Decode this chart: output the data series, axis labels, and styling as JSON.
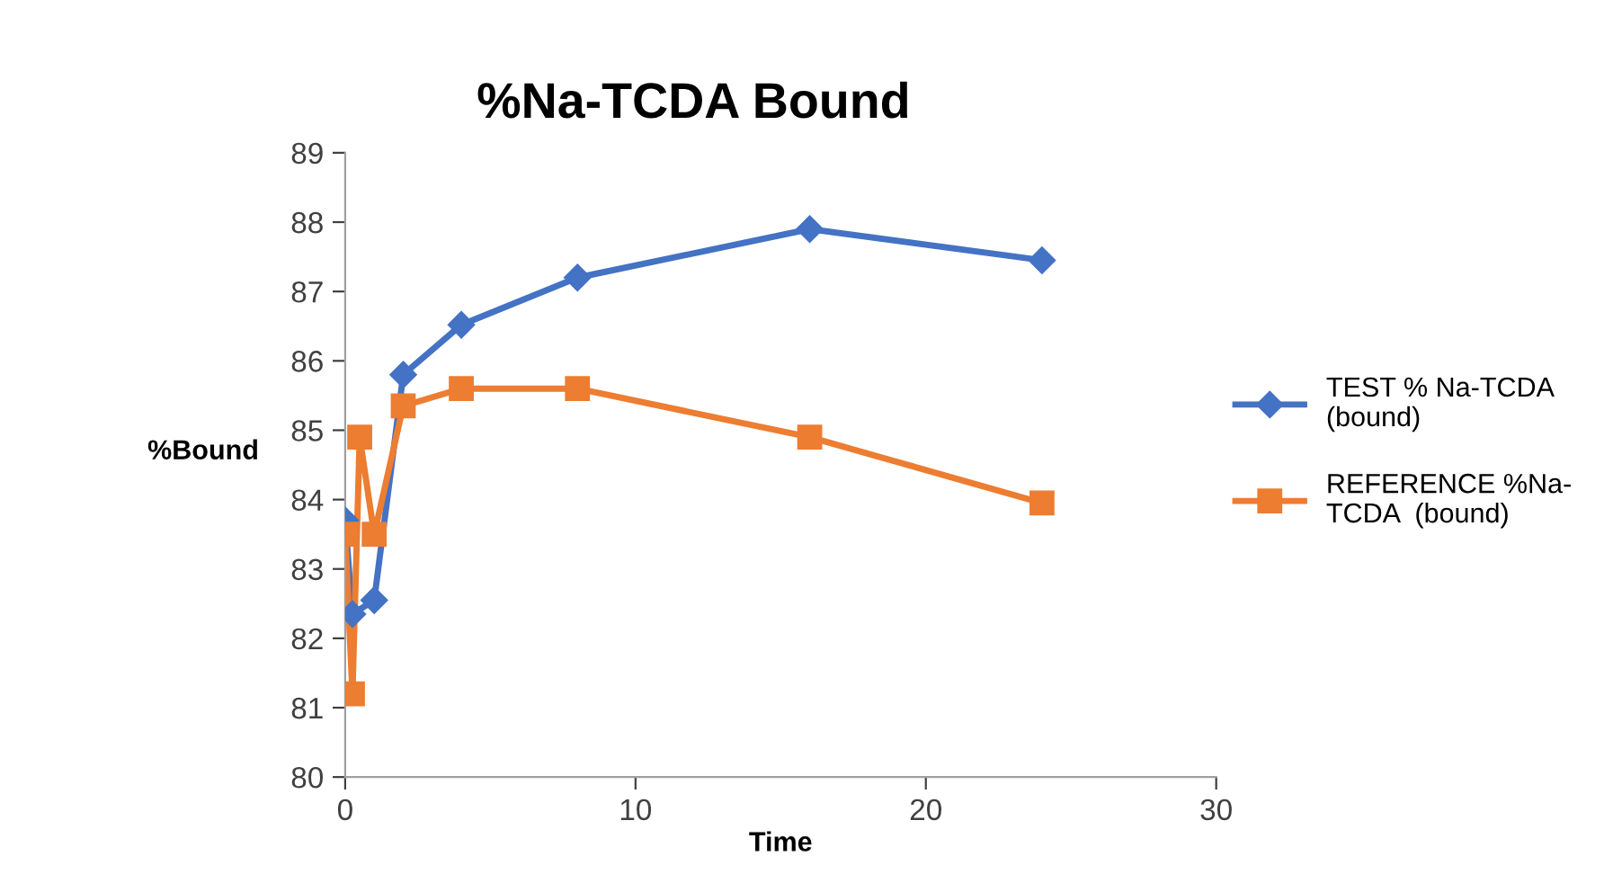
{
  "chart_data": {
    "type": "line",
    "title": "%Na-TCDA Bound",
    "xlabel": "Time",
    "ylabel": "%Bound",
    "x": [
      0,
      0.25,
      0.5,
      1,
      2,
      4,
      8,
      16,
      24
    ],
    "series": [
      {
        "name": "TEST % Na-TCDA (bound)",
        "color": "#4472c4",
        "marker": "diamond",
        "values": [
          83.7,
          82.35,
          null,
          82.55,
          85.8,
          86.52,
          87.2,
          87.9,
          87.45
        ]
      },
      {
        "name": "REFERENCE %Na-TCDA  (bound)",
        "color": "#ed7d31",
        "marker": "square",
        "values": [
          83.5,
          81.2,
          84.9,
          83.5,
          85.35,
          85.6,
          85.6,
          84.9,
          83.95
        ]
      }
    ],
    "xlim": [
      0,
      30
    ],
    "xticks": [
      0,
      10,
      20,
      30
    ],
    "ylim": [
      80,
      89
    ],
    "yticks": [
      80,
      81,
      82,
      83,
      84,
      85,
      86,
      87,
      88,
      89
    ],
    "grid": false,
    "legend": "right",
    "line_style": "solid"
  }
}
